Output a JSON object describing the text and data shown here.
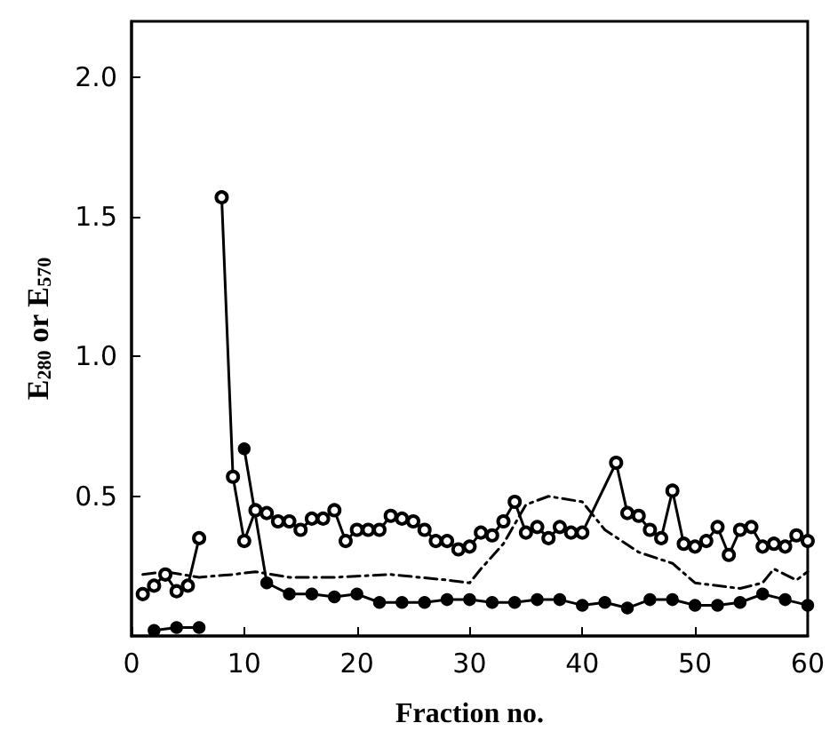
{
  "chart_data": {
    "type": "line",
    "xlabel": "Fraction no.",
    "ylabel": "E$_{280}$ or E$_{570}$",
    "xlim": [
      0,
      60
    ],
    "xticks": [
      0,
      10,
      20,
      30,
      40,
      50,
      60
    ],
    "ylim": [
      0,
      2.2
    ],
    "yticks": [
      0.5,
      {
        "value": 1,
        "label": "1.0"
      },
      1.5,
      {
        "value": 2,
        "label": "2.0"
      }
    ],
    "grid": false,
    "series": [
      {
        "color": "#000000",
        "marker": "circle",
        "x": [
          1,
          2,
          3,
          4,
          5,
          6,
          7,
          8,
          9,
          10,
          11,
          12,
          13,
          14,
          15,
          16,
          17,
          18,
          19,
          20,
          21,
          22,
          23,
          24,
          25,
          26,
          27,
          28,
          29,
          30,
          31,
          32,
          33,
          34,
          35,
          36,
          37,
          38,
          39,
          40,
          43,
          44,
          45,
          46,
          47,
          48,
          49,
          50,
          51,
          52,
          53,
          54,
          55,
          56,
          57,
          58,
          59,
          60
        ],
        "values": [
          0.15,
          0.18,
          0.22,
          0.16,
          0.18,
          0.35,
          null,
          1.57,
          0.57,
          0.34,
          0.45,
          0.44,
          0.41,
          0.41,
          0.38,
          0.42,
          0.42,
          0.45,
          0.34,
          0.38,
          0.38,
          0.38,
          0.43,
          0.42,
          0.41,
          0.38,
          0.34,
          0.34,
          0.31,
          0.32,
          0.37,
          0.36,
          0.41,
          0.48,
          0.37,
          0.39,
          0.35,
          0.39,
          0.37,
          0.37,
          0.62,
          0.44,
          0.43,
          0.38,
          0.35,
          0.52,
          0.33,
          0.32,
          0.34,
          0.39,
          0.29,
          0.38,
          0.39,
          0.32,
          0.33,
          0.32,
          0.36,
          0.34
        ]
      },
      {
        "color": "#000000",
        "marker": "circle",
        "x": [
          2,
          4,
          6,
          8,
          10,
          12,
          14,
          16,
          18,
          20,
          22,
          24,
          26,
          28,
          30,
          32,
          34,
          36,
          38,
          40,
          42,
          44,
          46,
          48,
          50,
          52,
          54,
          56,
          58,
          60
        ],
        "values": [
          0.02,
          0.03,
          0.03,
          null,
          0.67,
          0.19,
          0.15,
          0.15,
          0.14,
          0.15,
          0.12,
          0.12,
          0.12,
          0.13,
          0.13,
          0.12,
          0.12,
          0.13,
          0.13,
          0.11,
          0.12,
          0.1,
          0.13,
          0.13,
          0.11,
          0.11,
          0.12,
          0.15,
          0.13,
          0.11
        ]
      },
      {
        "color": "#000000",
        "marker": "none",
        "line_style": "dashed",
        "x": [
          1,
          3,
          6,
          9,
          11,
          14,
          18,
          23,
          28,
          30,
          31,
          33,
          35,
          37,
          40,
          42,
          45,
          48,
          50,
          54,
          56,
          57,
          59,
          60
        ],
        "values": [
          0.22,
          0.23,
          0.21,
          0.22,
          0.23,
          0.21,
          0.21,
          0.22,
          0.2,
          0.19,
          0.24,
          0.33,
          0.47,
          0.5,
          0.48,
          0.38,
          0.3,
          0.26,
          0.19,
          0.17,
          0.19,
          0.24,
          0.2,
          0.23
        ]
      }
    ]
  }
}
